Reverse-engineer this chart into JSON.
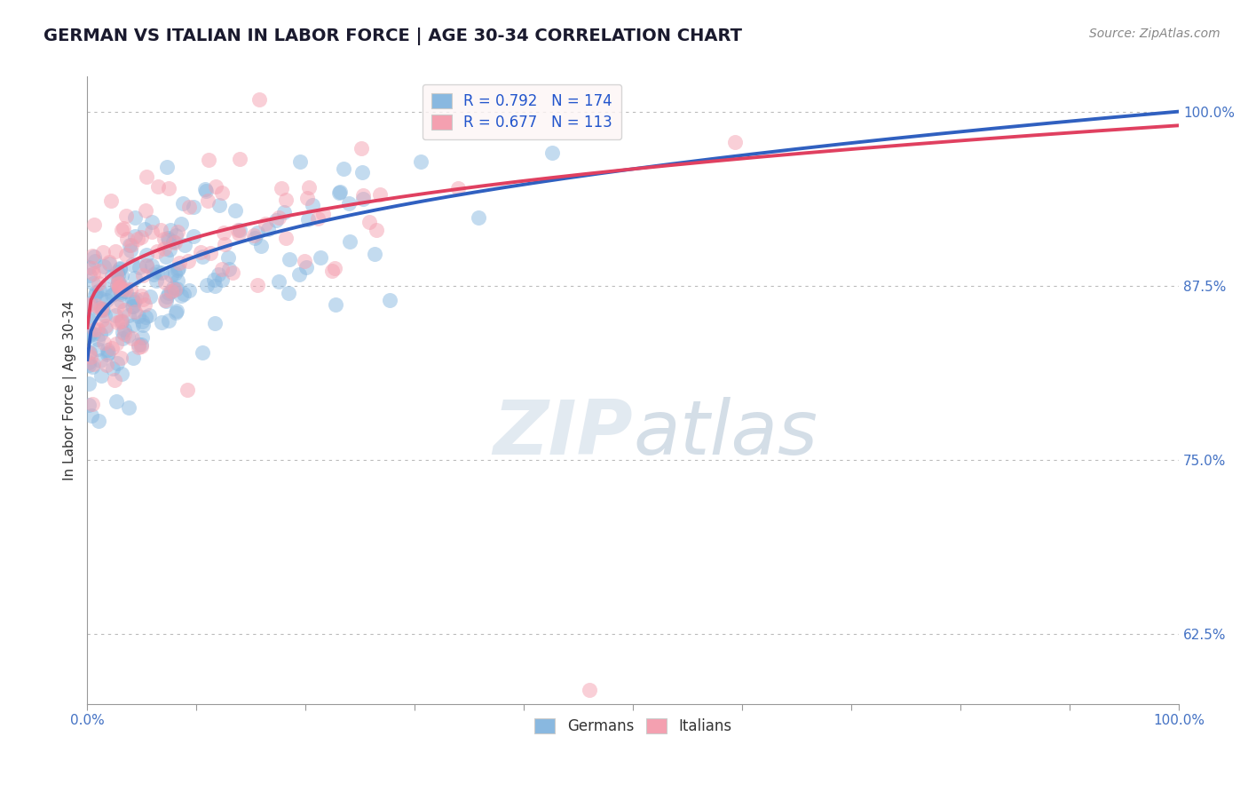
{
  "title": "GERMAN VS ITALIAN IN LABOR FORCE | AGE 30-34 CORRELATION CHART",
  "source_text": "Source: ZipAtlas.com",
  "ylabel": "In Labor Force | Age 30-34",
  "xlim": [
    0.0,
    1.0
  ],
  "ylim": [
    0.575,
    1.025
  ],
  "yticks": [
    0.625,
    0.75,
    0.875,
    1.0
  ],
  "ytick_labels": [
    "62.5%",
    "75.0%",
    "87.5%",
    "100.0%"
  ],
  "german_R": 0.792,
  "german_N": 174,
  "italian_R": 0.677,
  "italian_N": 113,
  "german_color": "#89b8e0",
  "italian_color": "#f4a0b0",
  "german_line_color": "#3060c0",
  "italian_line_color": "#e04060",
  "background_color": "#ffffff",
  "watermark_color": "#d0dce8",
  "title_fontsize": 14,
  "axis_label_fontsize": 11,
  "tick_fontsize": 11,
  "legend_fontsize": 12,
  "source_fontsize": 10,
  "german_seed": 12,
  "italian_seed": 77
}
